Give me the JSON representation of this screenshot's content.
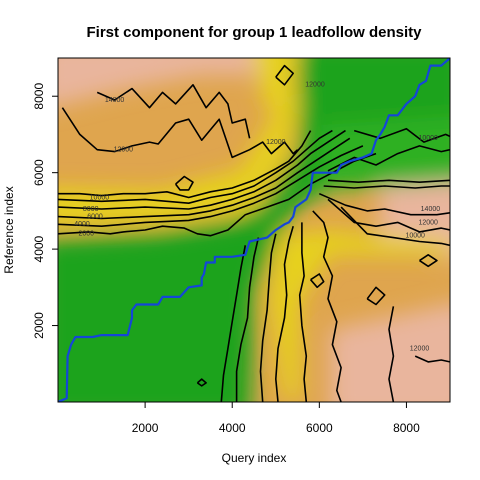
{
  "chart_data": {
    "type": "heatmap",
    "title": "First component for group 1 leadfollow density",
    "xlabel": "Query index",
    "ylabel": "Reference index",
    "xlim": [
      0,
      9000
    ],
    "ylim": [
      0,
      9000
    ],
    "x_ticks": [
      2000,
      4000,
      6000,
      8000
    ],
    "y_ticks": [
      2000,
      4000,
      6000,
      8000
    ],
    "x_tick_labels": [
      "2000",
      "4000",
      "6000",
      "8000"
    ],
    "y_tick_labels": [
      "2000",
      "4000",
      "6000",
      "8000"
    ],
    "grid": false,
    "legend": "none",
    "colors": {
      "low": "#1aa31a",
      "mid_low": "#8ccc10",
      "mid": "#e6d11a",
      "mid_high": "#dfa54e",
      "high": "#e9b59d",
      "path": "#1446d8",
      "contour": "#000000"
    },
    "contour_labels": [
      {
        "text": "14000",
        "x": 1300,
        "y": 7850
      },
      {
        "text": "12000",
        "x": 1500,
        "y": 6550
      },
      {
        "text": "10000",
        "x": 950,
        "y": 5300
      },
      {
        "text": "8000",
        "x": 750,
        "y": 5000
      },
      {
        "text": "6000",
        "x": 850,
        "y": 4800
      },
      {
        "text": "4000",
        "x": 550,
        "y": 4600
      },
      {
        "text": "2000",
        "x": 650,
        "y": 4350
      },
      {
        "text": "12000",
        "x": 5000,
        "y": 6750
      },
      {
        "text": "12000",
        "x": 5900,
        "y": 8250
      },
      {
        "text": "10000",
        "x": 8500,
        "y": 6850
      },
      {
        "text": "14000",
        "x": 8550,
        "y": 5000
      },
      {
        "text": "12000",
        "x": 8500,
        "y": 4650
      },
      {
        "text": "10000",
        "x": 8200,
        "y": 4300
      },
      {
        "text": "12000",
        "x": 8300,
        "y": 1350
      }
    ],
    "alignment_path": [
      [
        0,
        0
      ],
      [
        200,
        100
      ],
      [
        220,
        1200
      ],
      [
        300,
        1500
      ],
      [
        400,
        1700
      ],
      [
        800,
        1700
      ],
      [
        1000,
        1750
      ],
      [
        1600,
        1750
      ],
      [
        1700,
        2200
      ],
      [
        1700,
        2400
      ],
      [
        1800,
        2550
      ],
      [
        2300,
        2550
      ],
      [
        2400,
        2750
      ],
      [
        2800,
        2750
      ],
      [
        3000,
        3000
      ],
      [
        3300,
        3050
      ],
      [
        3300,
        3250
      ],
      [
        3350,
        3350
      ],
      [
        3400,
        3650
      ],
      [
        3600,
        3650
      ],
      [
        3600,
        3800
      ],
      [
        4000,
        3800
      ],
      [
        4300,
        3850
      ],
      [
        4400,
        4200
      ],
      [
        4800,
        4300
      ],
      [
        5000,
        4500
      ],
      [
        5200,
        4650
      ],
      [
        5300,
        4700
      ],
      [
        5400,
        4850
      ],
      [
        5450,
        5100
      ],
      [
        5700,
        5300
      ],
      [
        5800,
        5550
      ],
      [
        5850,
        6000
      ],
      [
        6400,
        6000
      ],
      [
        6500,
        6200
      ],
      [
        6700,
        6300
      ],
      [
        7000,
        6400
      ],
      [
        7200,
        6500
      ],
      [
        7300,
        6850
      ],
      [
        7400,
        7000
      ],
      [
        7500,
        7200
      ],
      [
        7600,
        7500
      ],
      [
        7800,
        7500
      ],
      [
        8000,
        7800
      ],
      [
        8200,
        8000
      ],
      [
        8300,
        8300
      ],
      [
        8450,
        8400
      ],
      [
        8550,
        8800
      ],
      [
        8800,
        8800
      ],
      [
        9000,
        9000
      ]
    ],
    "contours": [
      [
        [
          900,
          8100
        ],
        [
          1300,
          7900
        ],
        [
          1700,
          8200
        ],
        [
          2100,
          7700
        ],
        [
          2400,
          8100
        ],
        [
          2700,
          7800
        ],
        [
          3100,
          8300
        ],
        [
          3400,
          7700
        ],
        [
          3700,
          8100
        ],
        [
          3900,
          7800
        ],
        [
          4000,
          7300
        ],
        [
          4300,
          7400
        ],
        [
          4400,
          6900
        ]
      ],
      [
        [
          100,
          7700
        ],
        [
          500,
          7000
        ],
        [
          900,
          6600
        ],
        [
          1300,
          6550
        ],
        [
          1700,
          6700
        ],
        [
          2100,
          6800
        ],
        [
          2300,
          6750
        ],
        [
          2700,
          7300
        ],
        [
          3000,
          7400
        ],
        [
          3300,
          6850
        ],
        [
          3700,
          7400
        ],
        [
          4000,
          6400
        ],
        [
          4400,
          6600
        ],
        [
          4700,
          6800
        ],
        [
          4900,
          6500
        ],
        [
          5200,
          6800
        ],
        [
          5400,
          6500
        ],
        [
          5500,
          6600
        ]
      ],
      [
        [
          0,
          5450
        ],
        [
          500,
          5450
        ],
        [
          1000,
          5400
        ],
        [
          1500,
          5450
        ],
        [
          2000,
          5450
        ],
        [
          2500,
          5500
        ],
        [
          3000,
          5350
        ],
        [
          3500,
          5500
        ],
        [
          4000,
          5600
        ],
        [
          4500,
          5800
        ],
        [
          5000,
          6100
        ],
        [
          5300,
          6300
        ],
        [
          5600,
          6700
        ],
        [
          5800,
          7100
        ]
      ],
      [
        [
          0,
          5300
        ],
        [
          1000,
          5250
        ],
        [
          2000,
          5300
        ],
        [
          3000,
          5200
        ],
        [
          3500,
          5350
        ],
        [
          4000,
          5450
        ],
        [
          4500,
          5650
        ],
        [
          5000,
          6000
        ],
        [
          5400,
          6300
        ],
        [
          5700,
          6600
        ],
        [
          6000,
          6900
        ],
        [
          6300,
          7100
        ]
      ],
      [
        [
          0,
          5100
        ],
        [
          1000,
          5050
        ],
        [
          2000,
          5100
        ],
        [
          3000,
          5050
        ],
        [
          3500,
          5150
        ],
        [
          4000,
          5300
        ],
        [
          4500,
          5500
        ],
        [
          5000,
          5800
        ],
        [
          5500,
          6200
        ],
        [
          5800,
          6500
        ],
        [
          6200,
          6800
        ],
        [
          6600,
          7100
        ]
      ],
      [
        [
          0,
          4850
        ],
        [
          1000,
          4800
        ],
        [
          2000,
          4850
        ],
        [
          3000,
          4900
        ],
        [
          3500,
          5000
        ],
        [
          4000,
          5150
        ],
        [
          4500,
          5350
        ],
        [
          5000,
          5600
        ],
        [
          5500,
          6000
        ],
        [
          5900,
          6300
        ],
        [
          6300,
          6600
        ],
        [
          6700,
          6900
        ]
      ],
      [
        [
          0,
          4650
        ],
        [
          1000,
          4600
        ],
        [
          2000,
          4700
        ],
        [
          3000,
          4750
        ],
        [
          3500,
          4850
        ],
        [
          4000,
          5000
        ],
        [
          4500,
          5200
        ],
        [
          5000,
          5450
        ],
        [
          5500,
          5800
        ],
        [
          6000,
          6150
        ],
        [
          6500,
          6450
        ],
        [
          7000,
          6700
        ]
      ],
      [
        [
          0,
          4400
        ],
        [
          700,
          4450
        ],
        [
          1200,
          4400
        ],
        [
          1500,
          4450
        ],
        [
          2000,
          4500
        ],
        [
          2400,
          4600
        ],
        [
          2900,
          4550
        ],
        [
          3200,
          4400
        ],
        [
          3500,
          4350
        ],
        [
          3900,
          4500
        ],
        [
          4300,
          4900
        ],
        [
          4800,
          5100
        ],
        [
          5300,
          5300
        ],
        [
          5800,
          5700
        ],
        [
          6300,
          6000
        ],
        [
          6800,
          6300
        ],
        [
          7300,
          6500
        ]
      ],
      [
        [
          5400,
          4600
        ],
        [
          5300,
          4200
        ],
        [
          5200,
          3600
        ],
        [
          5250,
          2800
        ],
        [
          5200,
          2200
        ],
        [
          5050,
          1400
        ],
        [
          5000,
          600
        ],
        [
          5050,
          0
        ]
      ],
      [
        [
          5000,
          4400
        ],
        [
          4900,
          3900
        ],
        [
          4850,
          3200
        ],
        [
          4800,
          2400
        ],
        [
          4700,
          1600
        ],
        [
          4650,
          800
        ],
        [
          4700,
          0
        ]
      ],
      [
        [
          4600,
          4300
        ],
        [
          4500,
          3800
        ],
        [
          4400,
          3000
        ],
        [
          4350,
          2200
        ],
        [
          4200,
          1500
        ],
        [
          4100,
          800
        ],
        [
          4100,
          0
        ]
      ],
      [
        [
          4300,
          4100
        ],
        [
          4200,
          3500
        ],
        [
          4100,
          2800
        ],
        [
          4000,
          2100
        ],
        [
          3900,
          1400
        ],
        [
          3800,
          700
        ],
        [
          3750,
          0
        ]
      ],
      [
        [
          5600,
          4700
        ],
        [
          5600,
          3900
        ],
        [
          5650,
          3300
        ],
        [
          5550,
          2800
        ],
        [
          5600,
          2000
        ],
        [
          5700,
          1200
        ],
        [
          5650,
          600
        ],
        [
          5700,
          0
        ]
      ],
      [
        [
          5850,
          5000
        ],
        [
          6100,
          4700
        ],
        [
          6200,
          4300
        ],
        [
          6100,
          3800
        ],
        [
          6300,
          3300
        ],
        [
          6200,
          2700
        ],
        [
          6400,
          2100
        ],
        [
          6300,
          1500
        ],
        [
          6500,
          900
        ],
        [
          6400,
          300
        ],
        [
          6500,
          0
        ]
      ],
      [
        [
          6000,
          5450
        ],
        [
          6600,
          5150
        ],
        [
          7100,
          5000
        ],
        [
          7500,
          5050
        ],
        [
          8100,
          4900
        ],
        [
          8700,
          4900
        ],
        [
          9000,
          4950
        ]
      ],
      [
        [
          6200,
          5300
        ],
        [
          6800,
          4700
        ],
        [
          7300,
          4600
        ],
        [
          7800,
          4700
        ],
        [
          8300,
          4450
        ],
        [
          8800,
          4550
        ],
        [
          9000,
          4500
        ]
      ],
      [
        [
          6500,
          5100
        ],
        [
          7100,
          4400
        ],
        [
          7700,
          4300
        ],
        [
          8300,
          4200
        ],
        [
          8800,
          4150
        ],
        [
          9000,
          4100
        ]
      ],
      [
        [
          6100,
          5650
        ],
        [
          6800,
          5600
        ],
        [
          7500,
          5650
        ],
        [
          8200,
          5600
        ],
        [
          8800,
          5650
        ],
        [
          9000,
          5650
        ]
      ],
      [
        [
          6200,
          5800
        ],
        [
          6900,
          5750
        ],
        [
          7600,
          5800
        ],
        [
          8300,
          5750
        ],
        [
          9000,
          5800
        ]
      ],
      [
        [
          6200,
          6050
        ],
        [
          6800,
          6400
        ],
        [
          7300,
          6200
        ],
        [
          7800,
          6500
        ],
        [
          8300,
          6700
        ],
        [
          8800,
          6550
        ],
        [
          9000,
          6600
        ]
      ],
      [
        [
          6800,
          7100
        ],
        [
          7400,
          6900
        ],
        [
          8000,
          7150
        ],
        [
          8400,
          6800
        ],
        [
          8900,
          7000
        ],
        [
          9000,
          6950
        ]
      ],
      [
        [
          7700,
          2500
        ],
        [
          7600,
          1900
        ],
        [
          7700,
          1200
        ],
        [
          7600,
          600
        ],
        [
          7700,
          0
        ]
      ],
      [
        [
          8200,
          1200
        ],
        [
          8500,
          1050
        ],
        [
          8800,
          1100
        ],
        [
          9000,
          1050
        ]
      ],
      [
        [
          2700,
          5700
        ],
        [
          2900,
          5900
        ],
        [
          3100,
          5750
        ],
        [
          3000,
          5550
        ],
        [
          2800,
          5550
        ],
        [
          2700,
          5700
        ]
      ],
      [
        [
          5800,
          3200
        ],
        [
          6000,
          3350
        ],
        [
          6100,
          3150
        ],
        [
          5950,
          3000
        ],
        [
          5800,
          3200
        ]
      ],
      [
        [
          7100,
          2700
        ],
        [
          7300,
          3000
        ],
        [
          7500,
          2800
        ],
        [
          7300,
          2550
        ],
        [
          7100,
          2700
        ]
      ],
      [
        [
          3200,
          500
        ],
        [
          3300,
          600
        ],
        [
          3400,
          500
        ],
        [
          3300,
          420
        ],
        [
          3200,
          500
        ]
      ],
      [
        [
          5000,
          8500
        ],
        [
          5200,
          8800
        ],
        [
          5400,
          8600
        ],
        [
          5200,
          8300
        ],
        [
          5000,
          8500
        ]
      ],
      [
        [
          8300,
          3700
        ],
        [
          8500,
          3850
        ],
        [
          8700,
          3700
        ],
        [
          8500,
          3550
        ],
        [
          8300,
          3700
        ]
      ]
    ]
  }
}
